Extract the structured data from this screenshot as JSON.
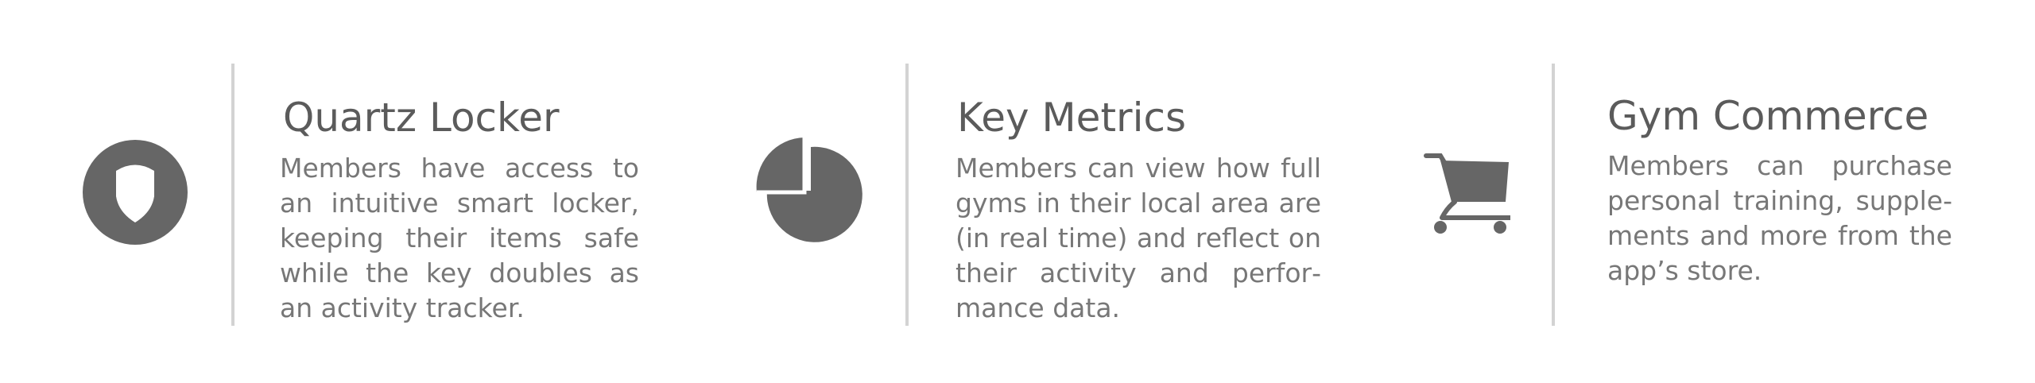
{
  "features": [
    {
      "icon": "shield-icon",
      "title": "Quartz Locker",
      "description": "Members have access to an intuitive smart locker, keep­ing their items safe while the key doubles as an activ­ity tracker."
    },
    {
      "icon": "pie-chart-icon",
      "title": "Key Metrics",
      "description": "Members can view how full gyms in their local area are (in real time) and reflect on their activity and perfor­mance data."
    },
    {
      "icon": "shopping-cart-icon",
      "title": "Gym Commerce",
      "description": "Members can purchase personal training, supple­ments and more from the app’s store."
    }
  ],
  "colors": {
    "icon": "#666666",
    "title": "#5b5b5b",
    "text": "#777777",
    "divider": "#d3d3d3"
  }
}
